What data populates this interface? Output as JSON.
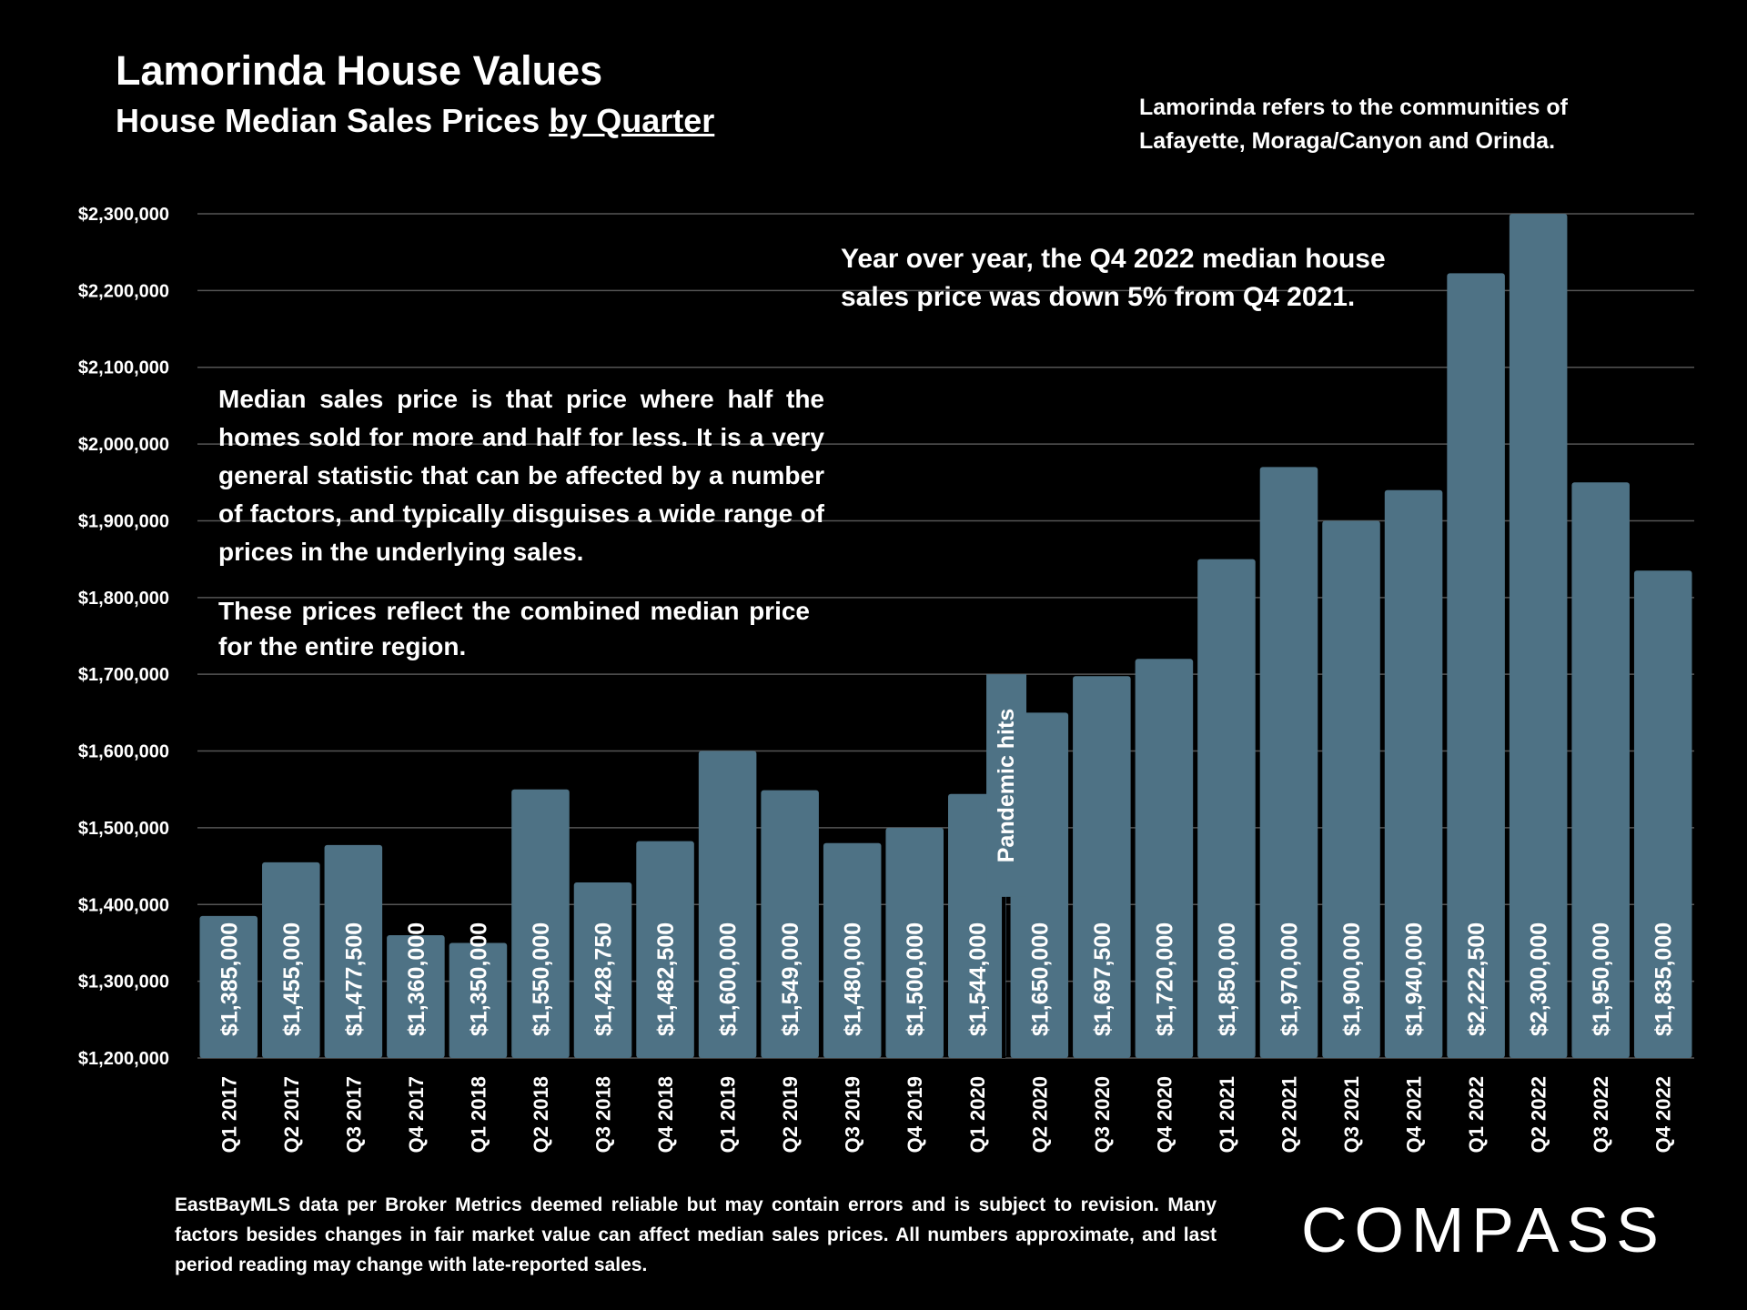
{
  "header": {
    "title": "Lamorinda House Values",
    "subtitle_main": "House Median Sales Prices ",
    "subtitle_underlined": "by Quarter"
  },
  "note_top": {
    "line1": "Lamorinda refers to the communities of",
    "line2": "Lafayette, Moraga/Canyon and Orinda."
  },
  "callout": {
    "line1": "Year over year, the Q4 2022 median house",
    "line2": "sales price was down 5% from Q4 2021."
  },
  "info": {
    "paragraph1": "Median sales price is that price where half the homes sold for more and half for less. It is a very general statistic that can be affected by a number of factors, and typically disguises a wide range of prices in the underlying sales.",
    "paragraph2": "These prices reflect the combined median price for the entire region."
  },
  "footer": {
    "text": "EastBayMLS data per Broker Metrics deemed reliable but may contain errors and is subject to revision. Many factors besides changes in fair market value can affect median sales prices. All numbers approximate, and last period reading may change with late-reported sales."
  },
  "logo": {
    "text": "COMPASS"
  },
  "colors": {
    "background": "#000000",
    "bar": "#4e7285",
    "gridline": "#555555",
    "text": "#ffffff"
  },
  "chart_data": {
    "type": "bar",
    "title": "Lamorinda House Values",
    "subtitle": "House Median Sales Prices by Quarter",
    "xlabel": "",
    "ylabel": "",
    "ylim": [
      1200000,
      2300000
    ],
    "ytick_values": [
      1200000,
      1300000,
      1400000,
      1500000,
      1600000,
      1700000,
      1800000,
      1900000,
      2000000,
      2100000,
      2200000,
      2300000
    ],
    "ytick_labels": [
      "$1,200,000",
      "$1,300,000",
      "$1,400,000",
      "$1,500,000",
      "$1,600,000",
      "$1,700,000",
      "$1,800,000",
      "$1,900,000",
      "$2,000,000",
      "$2,100,000",
      "$2,200,000",
      "$2,300,000"
    ],
    "grid": true,
    "categories": [
      "Q1 2017",
      "Q2 2017",
      "Q3 2017",
      "Q4 2017",
      "Q1 2018",
      "Q2 2018",
      "Q3 2018",
      "Q4 2018",
      "Q1 2019",
      "Q2 2019",
      "Q3 2019",
      "Q4 2019",
      "Q1 2020",
      "Q2 2020",
      "Q3 2020",
      "Q4 2020",
      "Q1 2021",
      "Q2 2021",
      "Q3 2021",
      "Q4 2021",
      "Q1 2022",
      "Q2 2022",
      "Q3 2022",
      "Q4 2022"
    ],
    "values": [
      1385000,
      1455000,
      1477500,
      1360000,
      1350000,
      1550000,
      1428750,
      1482500,
      1600000,
      1549000,
      1480000,
      1500000,
      1544000,
      1650000,
      1697500,
      1720000,
      1850000,
      1970000,
      1900000,
      1940000,
      2222500,
      2300000,
      1950000,
      1835000
    ],
    "data_labels": [
      "$1,385,000",
      "$1,455,000",
      "$1,477,500",
      "$1,360,000",
      "$1,350,000",
      "$1,550,000",
      "$1,428,750",
      "$1,482,500",
      "$1,600,000",
      "$1,549,000",
      "$1,480,000",
      "$1,500,000",
      "$1,544,000",
      "$1,650,000",
      "$1,697,500",
      "$1,720,000",
      "$1,850,000",
      "$1,970,000",
      "$1,900,000",
      "$1,940,000",
      "$2,222,500",
      "$2,300,000",
      "$1,950,000",
      "$1,835,000"
    ],
    "annotations": [
      {
        "text": "Pandemic hits",
        "between": [
          "Q1 2020",
          "Q2 2020"
        ],
        "value_top": 1700000,
        "value_bottom": 1410000
      }
    ]
  }
}
